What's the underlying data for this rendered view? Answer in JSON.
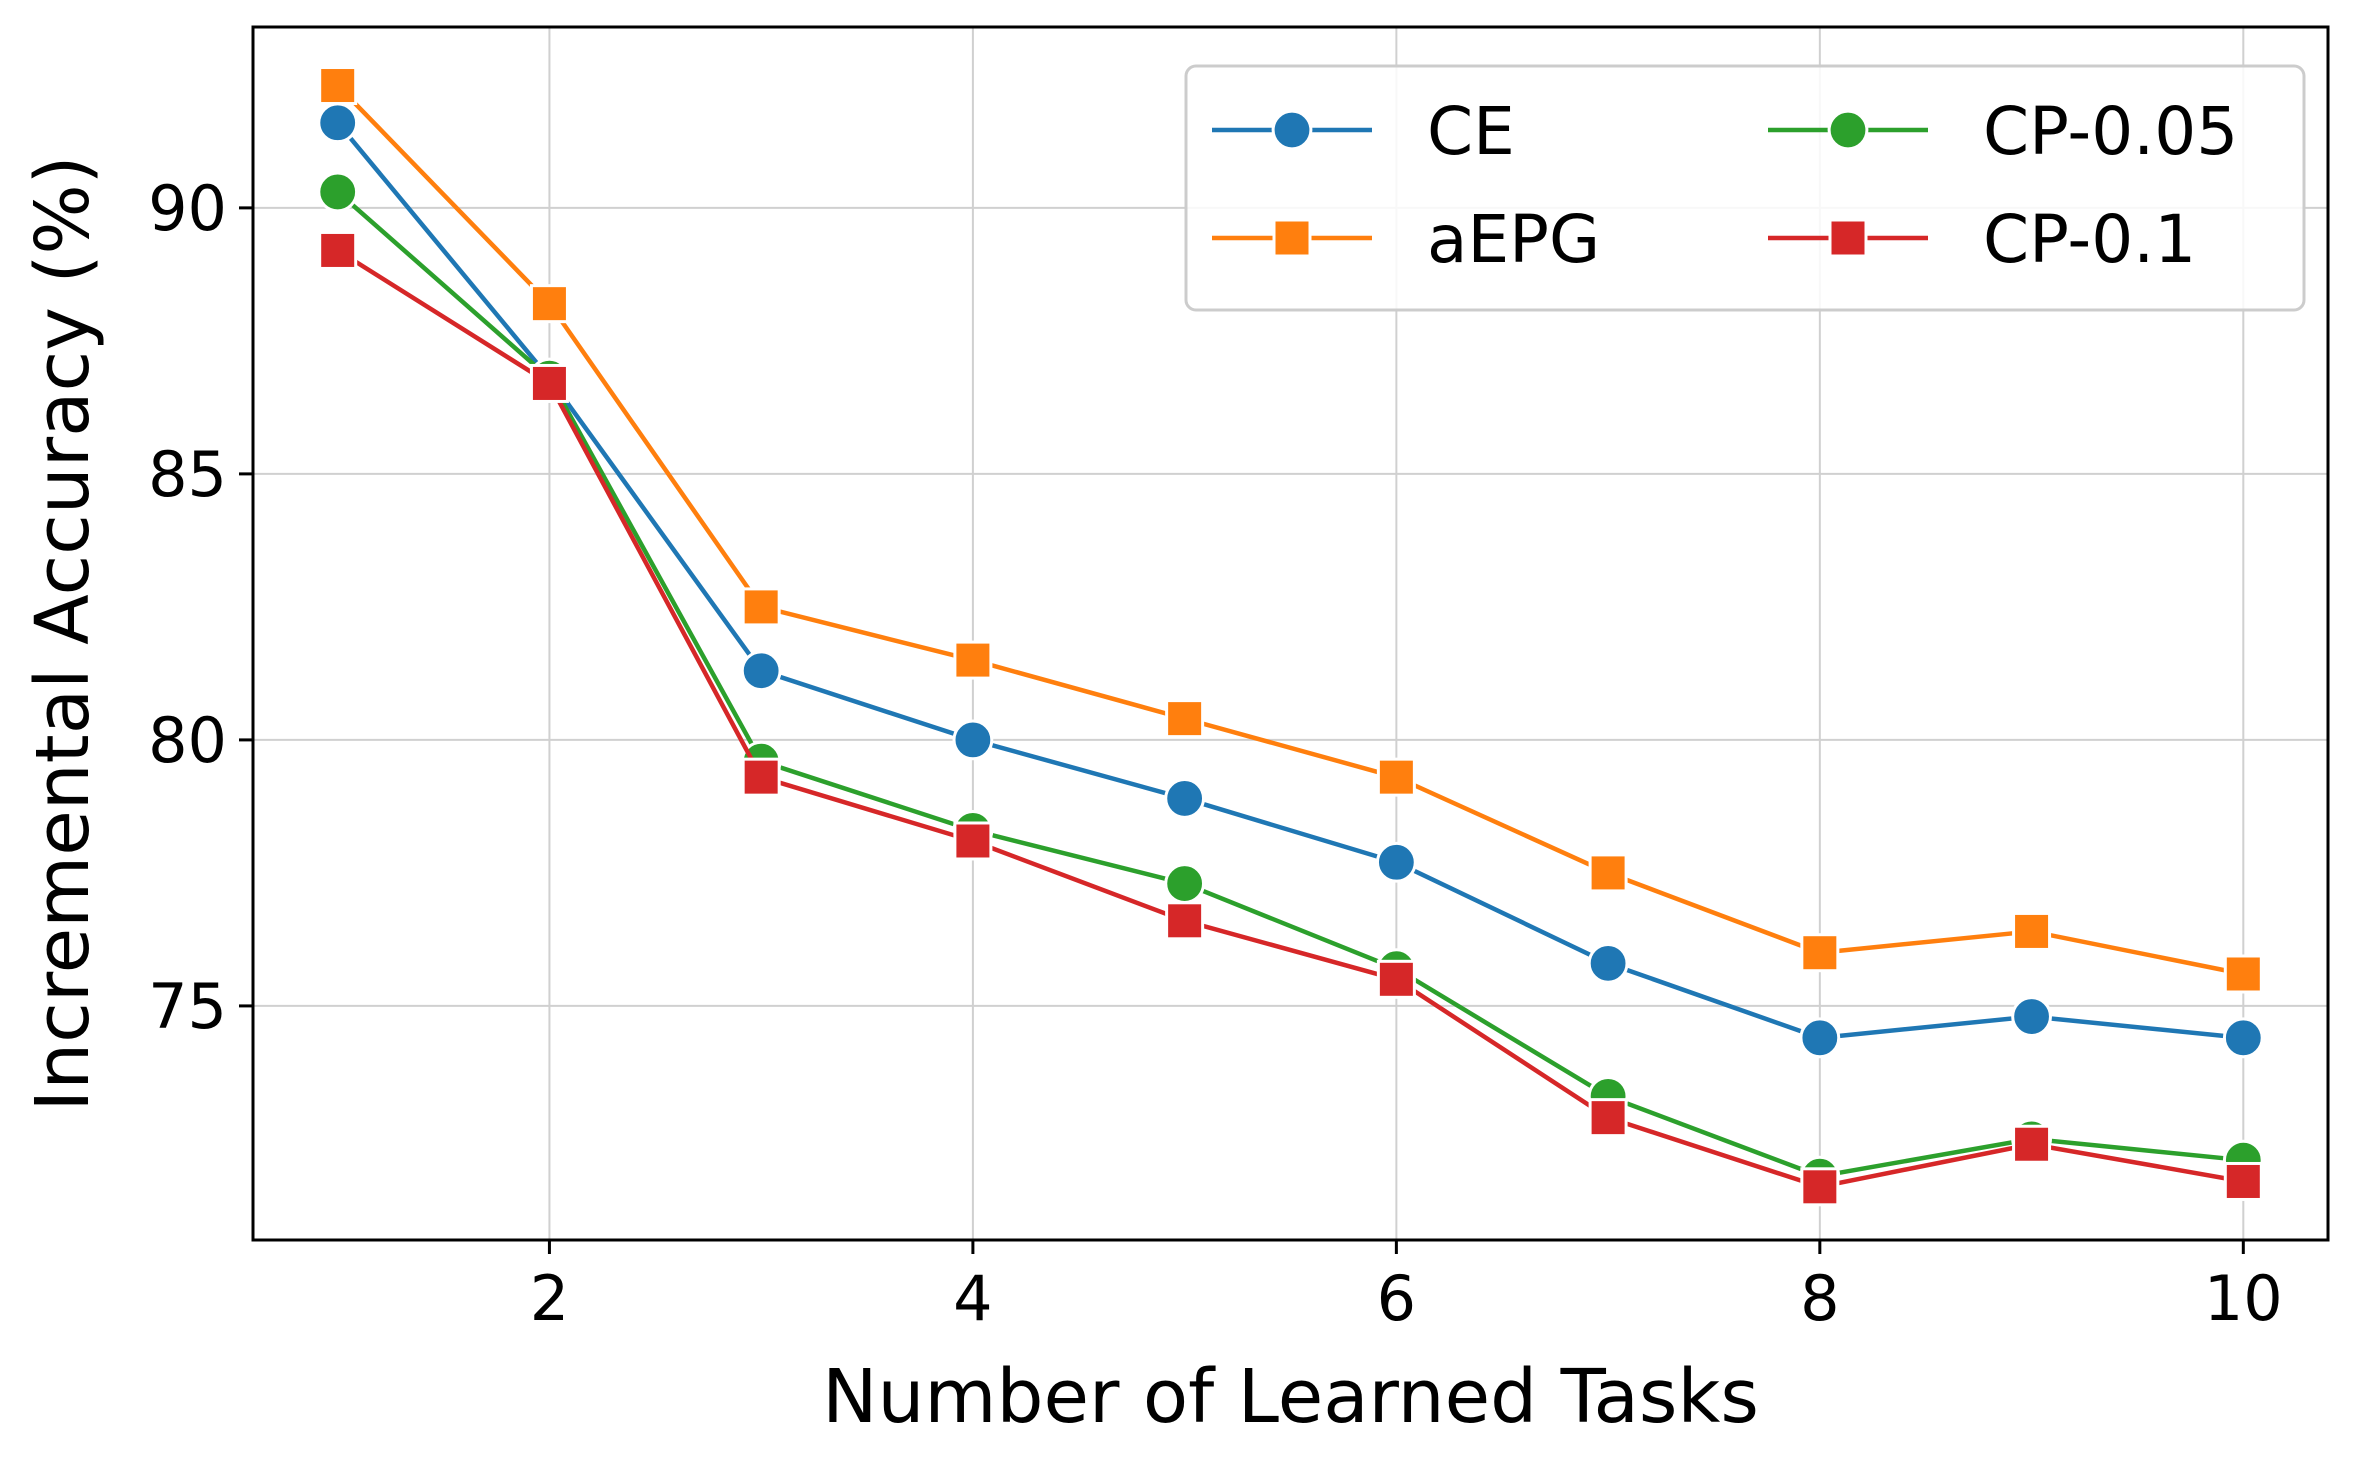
{
  "chart_data": {
    "type": "line",
    "title": "",
    "xlabel": "Number of Learned Tasks",
    "ylabel": "Incremental Accuracy (%)",
    "x": [
      1,
      2,
      3,
      4,
      5,
      6,
      7,
      8,
      9,
      10
    ],
    "xlim": [
      0.6,
      10.4
    ],
    "ylim": [
      70.6,
      93.4
    ],
    "xticks": [
      2,
      4,
      6,
      8,
      10
    ],
    "yticks": [
      75,
      80,
      85,
      90
    ],
    "grid": true,
    "legend_position": "top-right",
    "legend_columns": 2,
    "series": [
      {
        "name": "CE",
        "color": "#1f77b4",
        "marker": "circle",
        "values": [
          91.6,
          86.8,
          81.3,
          80.0,
          78.9,
          77.7,
          75.8,
          74.4,
          74.8,
          74.4
        ]
      },
      {
        "name": "aEPG",
        "color": "#ff7f0e",
        "marker": "square",
        "values": [
          92.3,
          88.2,
          82.5,
          81.5,
          80.4,
          79.3,
          77.5,
          76.0,
          76.4,
          75.6
        ]
      },
      {
        "name": "CP-0.05",
        "color": "#2ca02c",
        "marker": "circle",
        "values": [
          90.3,
          86.8,
          79.6,
          78.3,
          77.3,
          75.7,
          73.3,
          71.8,
          72.5,
          72.1
        ]
      },
      {
        "name": "CP-0.1",
        "color": "#d62728",
        "marker": "square",
        "values": [
          89.2,
          86.7,
          79.3,
          78.1,
          76.6,
          75.5,
          72.9,
          71.6,
          72.4,
          71.7
        ]
      }
    ]
  }
}
